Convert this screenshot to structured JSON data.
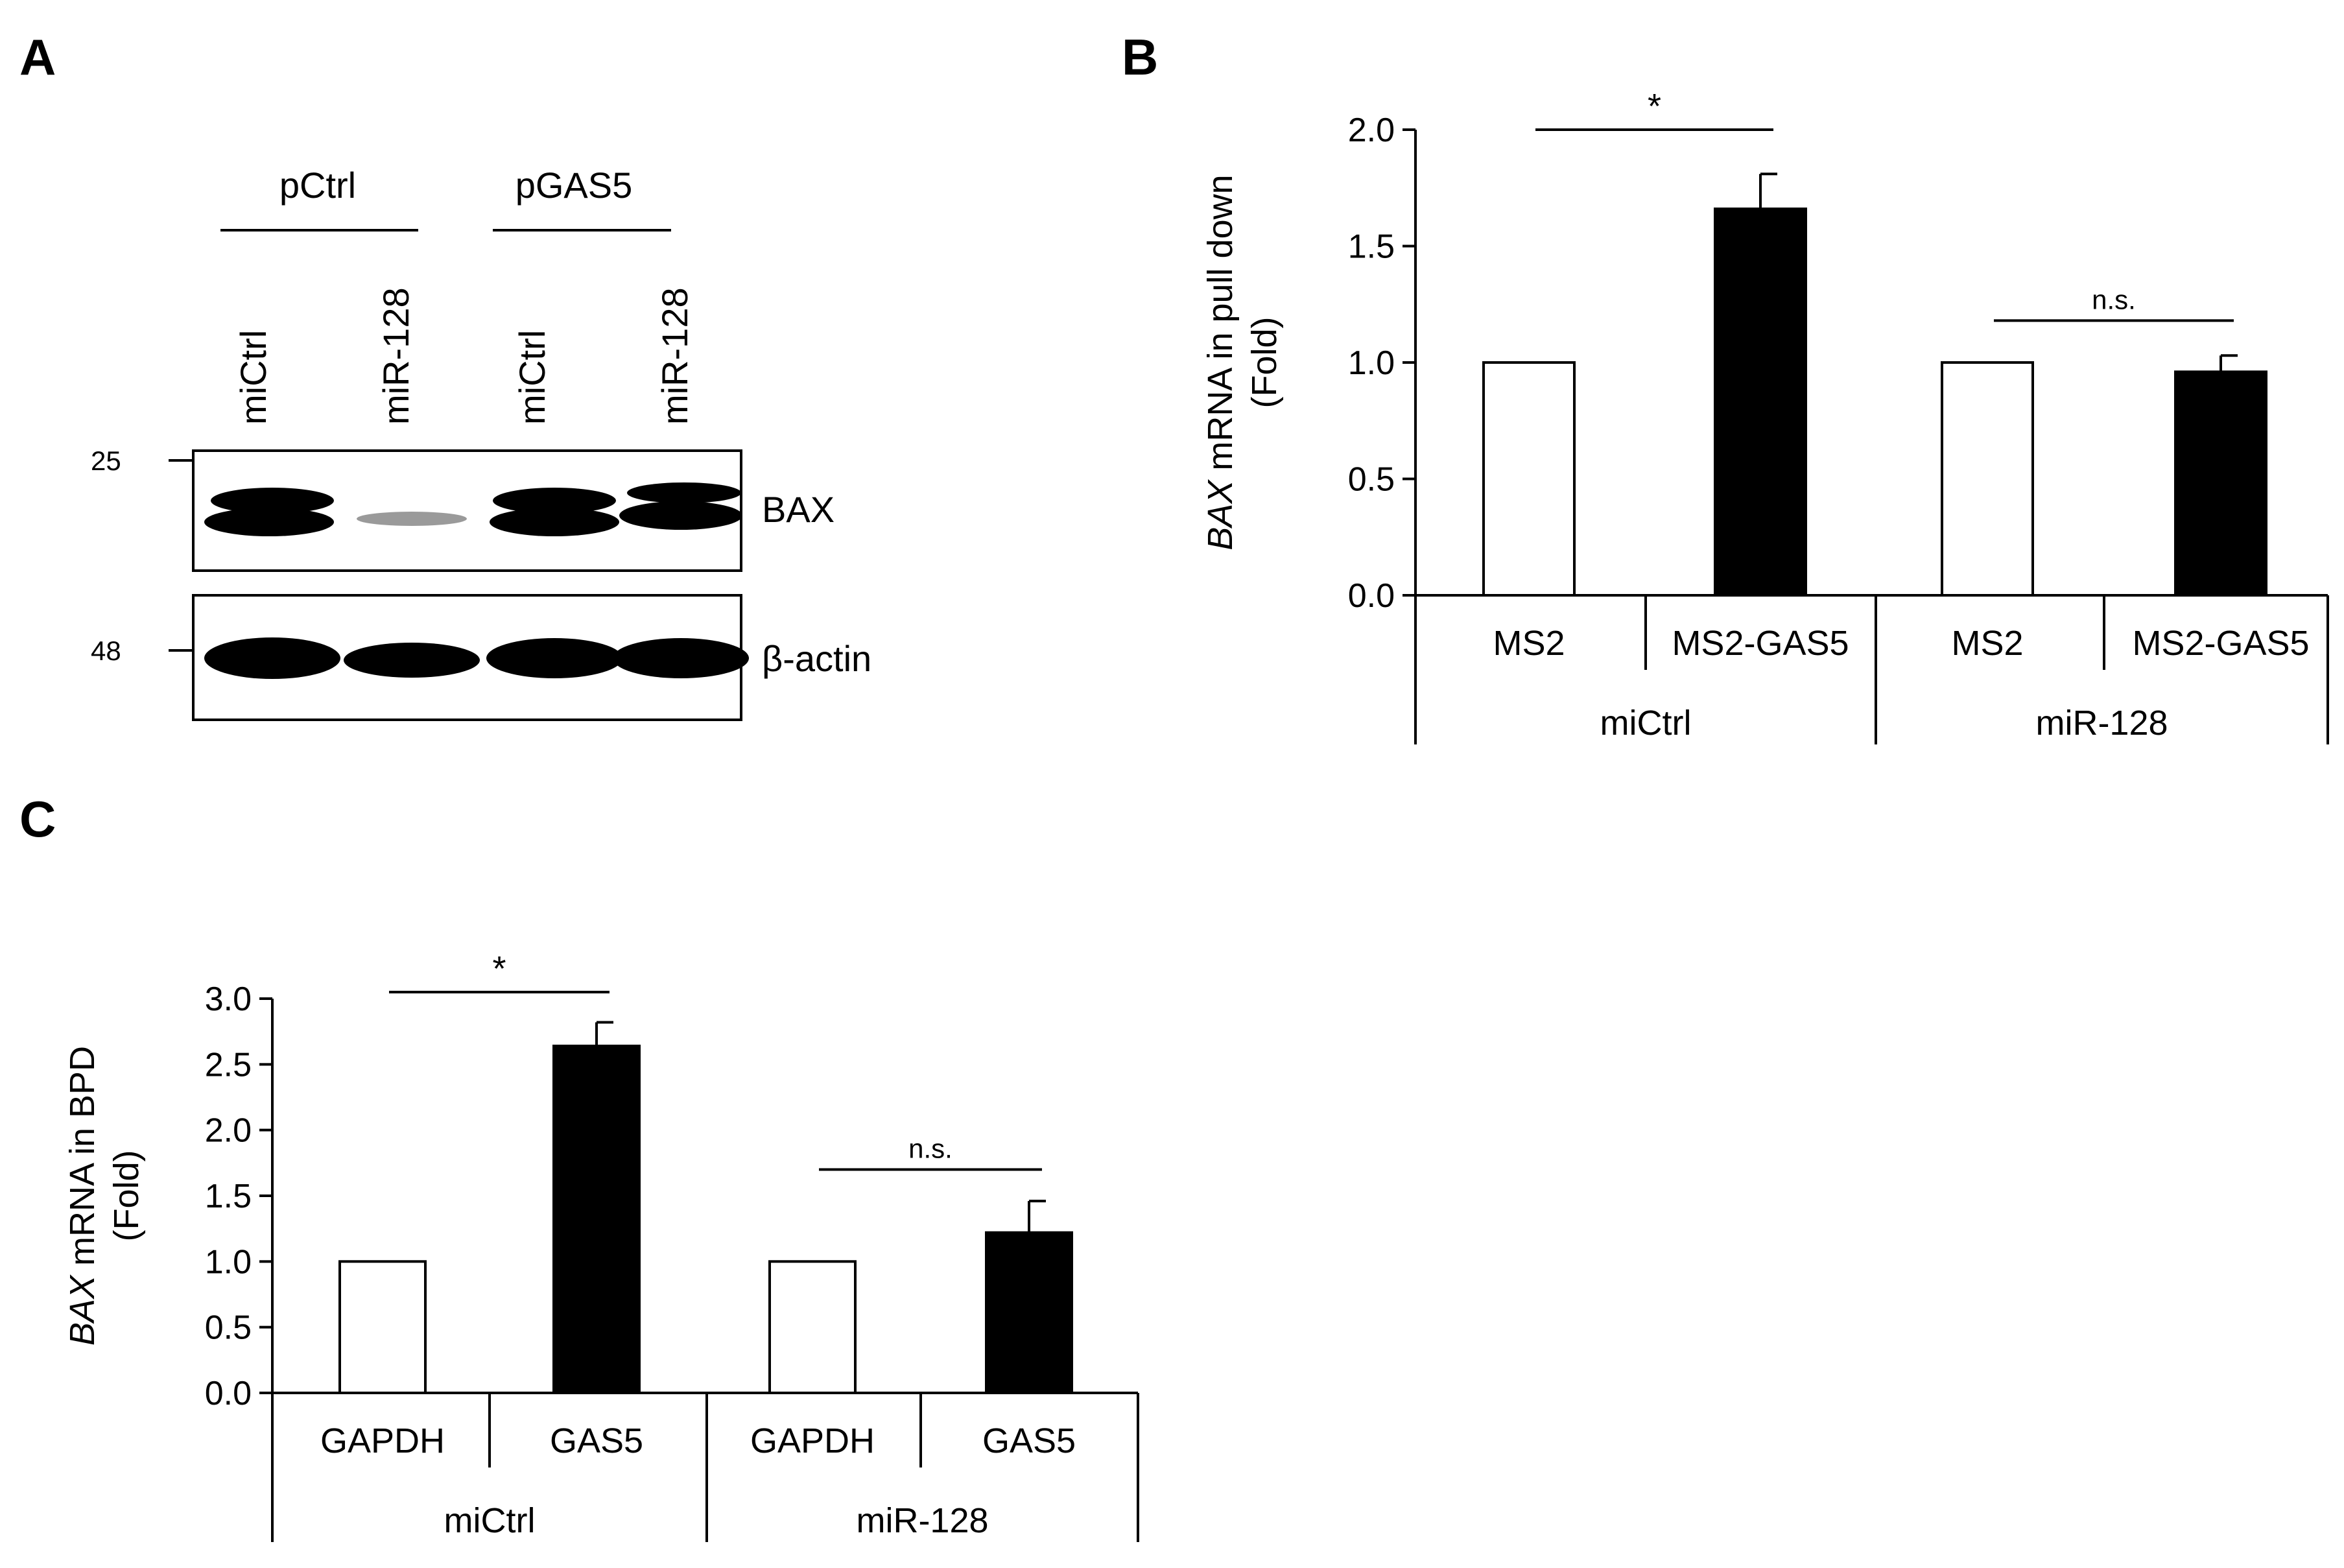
{
  "panel_letters": {
    "a": "A",
    "b": "B",
    "c": "C"
  },
  "western_blot": {
    "groups": [
      "pCtrl",
      "pGAS5"
    ],
    "lanes": [
      "miCtrl",
      "miR-128",
      "miCtrl",
      "miR-128"
    ],
    "markers": [
      "25",
      "48"
    ],
    "bands": [
      "BAX",
      "β-actin"
    ],
    "band_intensity": {
      "BAX": [
        1.0,
        0.15,
        1.0,
        1.0
      ],
      "beta_actin": [
        1.0,
        0.9,
        1.0,
        1.0
      ]
    }
  },
  "chart_data": [
    {
      "type": "bar",
      "panel": "B",
      "ylabel_italic": "BAX",
      "ylabel_rest": " mRNA in pull down",
      "ylabel_unit": "(Fold)",
      "ylim": [
        0,
        2.0
      ],
      "yticks": [
        "0.0",
        "0.5",
        "1.0",
        "1.5",
        "2.0"
      ],
      "categories": [
        "MS2",
        "MS2-GAS5",
        "MS2",
        "MS2-GAS5"
      ],
      "groups": [
        "miCtrl",
        "miR-128"
      ],
      "values": [
        1.0,
        1.66,
        1.0,
        0.96
      ],
      "errors": [
        0,
        0.15,
        0,
        0.07
      ],
      "fills": [
        "#ffffff",
        "#000000",
        "#ffffff",
        "#000000"
      ],
      "annotations": [
        {
          "text": "*",
          "bars": [
            0,
            1
          ],
          "level": 2.0
        },
        {
          "text": "n.s.",
          "bars": [
            2,
            3
          ],
          "level": 1.18
        }
      ]
    },
    {
      "type": "bar",
      "panel": "C",
      "ylabel_italic": "BAX",
      "ylabel_rest": " mRNA in BPD",
      "ylabel_unit": "(Fold)",
      "ylim": [
        0,
        3.0
      ],
      "yticks": [
        "0.0",
        "0.5",
        "1.0",
        "1.5",
        "2.0",
        "2.5",
        "3.0"
      ],
      "categories": [
        "GAPDH",
        "GAS5",
        "GAPDH",
        "GAS5"
      ],
      "groups": [
        "miCtrl",
        "miR-128"
      ],
      "values": [
        1.0,
        2.64,
        1.0,
        1.22
      ],
      "errors": [
        0,
        0.18,
        0,
        0.24
      ],
      "fills": [
        "#ffffff",
        "#000000",
        "#ffffff",
        "#000000"
      ],
      "annotations": [
        {
          "text": "*",
          "bars": [
            0,
            1
          ],
          "level": 3.05
        },
        {
          "text": "n.s.",
          "bars": [
            2,
            3
          ],
          "level": 1.7
        }
      ]
    }
  ]
}
